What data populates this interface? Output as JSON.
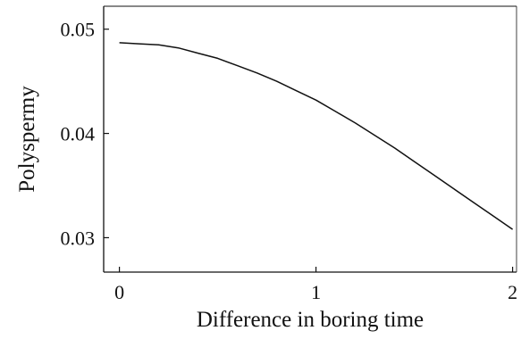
{
  "chart_data": {
    "type": "line",
    "xlabel": "Difference in boring time",
    "ylabel": "Polyspermy",
    "xlim": [
      -0.08,
      2.02
    ],
    "ylim": [
      0.0267,
      0.0522
    ],
    "xticks": [
      0,
      1,
      2
    ],
    "xtick_labels": [
      "0",
      "1",
      "2"
    ],
    "yticks": [
      0.03,
      0.04,
      0.05
    ],
    "ytick_labels": [
      "0.03",
      "0.04",
      "0.05"
    ],
    "grid": false,
    "series": [
      {
        "color": "#111111",
        "x": [
          0,
          0.1,
          0.2,
          0.3,
          0.4,
          0.5,
          0.6,
          0.7,
          0.8,
          0.9,
          1.0,
          1.1,
          1.2,
          1.3,
          1.4,
          1.5,
          1.6,
          1.7,
          1.8,
          1.9,
          2.0
        ],
        "y": [
          0.0487,
          0.0486,
          0.0485,
          0.0482,
          0.0477,
          0.0472,
          0.0465,
          0.0458,
          0.045,
          0.0441,
          0.0432,
          0.0421,
          0.041,
          0.0398,
          0.0386,
          0.0373,
          0.036,
          0.0347,
          0.0334,
          0.0321,
          0.0308
        ]
      }
    ]
  }
}
